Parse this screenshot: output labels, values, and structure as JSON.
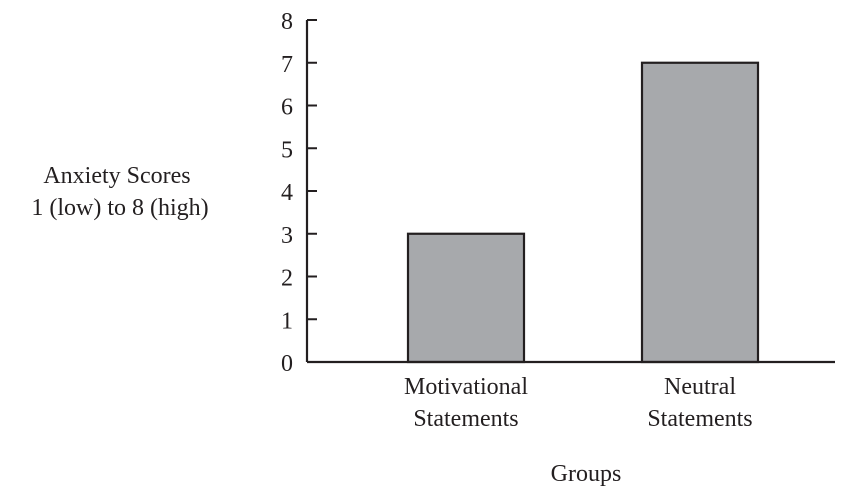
{
  "chart_data": {
    "type": "bar",
    "title": "",
    "xlabel": "Groups",
    "ylabel": [
      "Anxiety Scores",
      "1 (low) to 8 (high)"
    ],
    "categories": [
      [
        "Motivational",
        "Statements"
      ],
      [
        "Neutral",
        "Statements"
      ]
    ],
    "values": [
      3,
      7
    ],
    "ylim": [
      0,
      8
    ],
    "yticks": [
      "0",
      "1",
      "2",
      "3",
      "4",
      "5",
      "6",
      "7",
      "8"
    ],
    "grid": false,
    "legend": "none",
    "colors": {
      "bar_fill": "#a7a9ac",
      "bar_stroke": "#231f20",
      "axis": "#231f20",
      "text": "#231f20"
    }
  }
}
